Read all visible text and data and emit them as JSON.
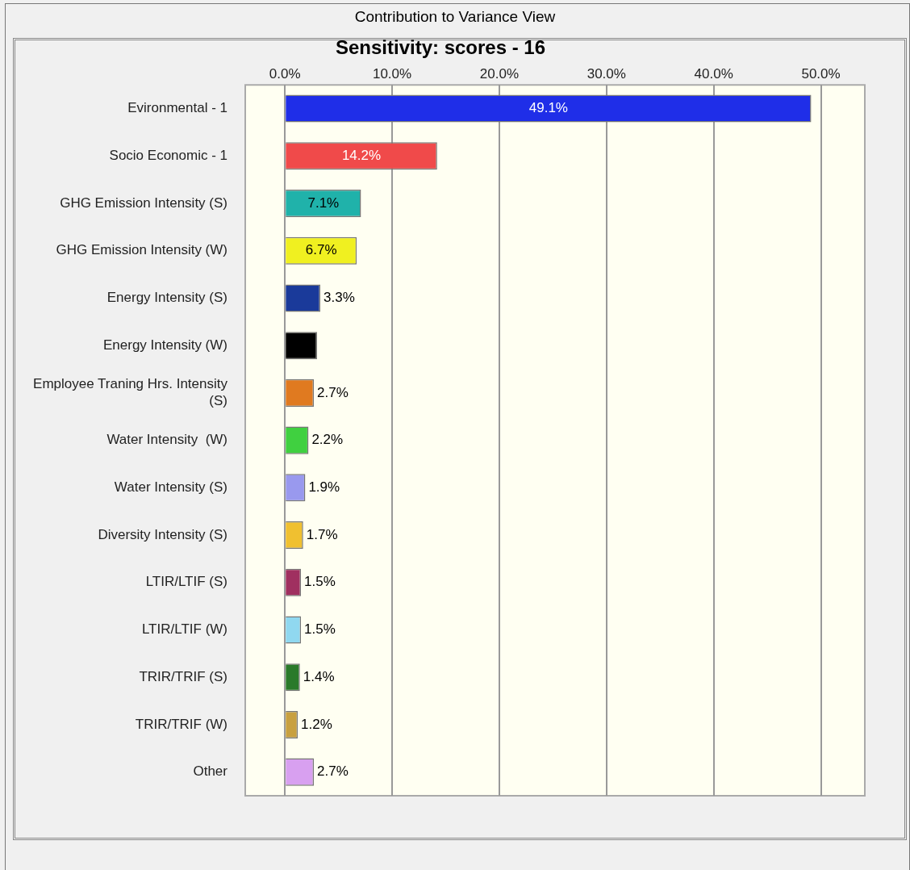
{
  "chart_data": {
    "type": "bar",
    "orientation": "horizontal",
    "title": "Sensitivity: scores - 16",
    "annotations": [
      "Contribution to Variance View"
    ],
    "categories": [
      "Evironmental - 1",
      "Socio Economic - 1",
      "GHG Emission Intensity (S)",
      "GHG Emission Intensity (W)",
      "Energy Intensity (S)",
      "Energy Intensity (W)",
      "Employee Traning Hrs. Intensity (S)",
      "Water Intensity  (W)",
      "Water Intensity (S)",
      "Diversity Intensity (S)",
      "LTIR/LTIF (S)",
      "LTIR/LTIF (W)",
      "TRIR/TRIF (S)",
      "TRIR/TRIF (W)",
      "Other"
    ],
    "values": [
      49.1,
      14.2,
      7.1,
      6.7,
      3.3,
      3.0,
      2.7,
      2.2,
      1.9,
      1.7,
      1.5,
      1.5,
      1.4,
      1.2,
      2.7
    ],
    "value_labels": [
      "49.1%",
      "14.2%",
      "7.1%",
      "6.7%",
      "3.3%",
      null,
      "2.7%",
      "2.2%",
      "1.9%",
      "1.7%",
      "1.5%",
      "1.5%",
      "1.4%",
      "1.2%",
      "2.7%"
    ],
    "colors": [
      "#1f2ee8",
      "#f04a4a",
      "#20b2aa",
      "#f0f020",
      "#1a3a9a",
      "#000000",
      "#e07a20",
      "#40d040",
      "#9999ee",
      "#f0c030",
      "#a03060",
      "#90d8f0",
      "#2a7a2a",
      "#c8a040",
      "#d8a0f0"
    ],
    "xlim": [
      -3.7,
      54.1
    ],
    "xticks": [
      {
        "value": 0,
        "label": "0.0%"
      },
      {
        "value": 10,
        "label": "10.0%"
      },
      {
        "value": 20,
        "label": "20.0%"
      },
      {
        "value": 30,
        "label": "30.0%"
      },
      {
        "value": 40,
        "label": "40.0%"
      },
      {
        "value": 50,
        "label": "50.0%"
      }
    ],
    "grid": "x",
    "legend": false
  }
}
